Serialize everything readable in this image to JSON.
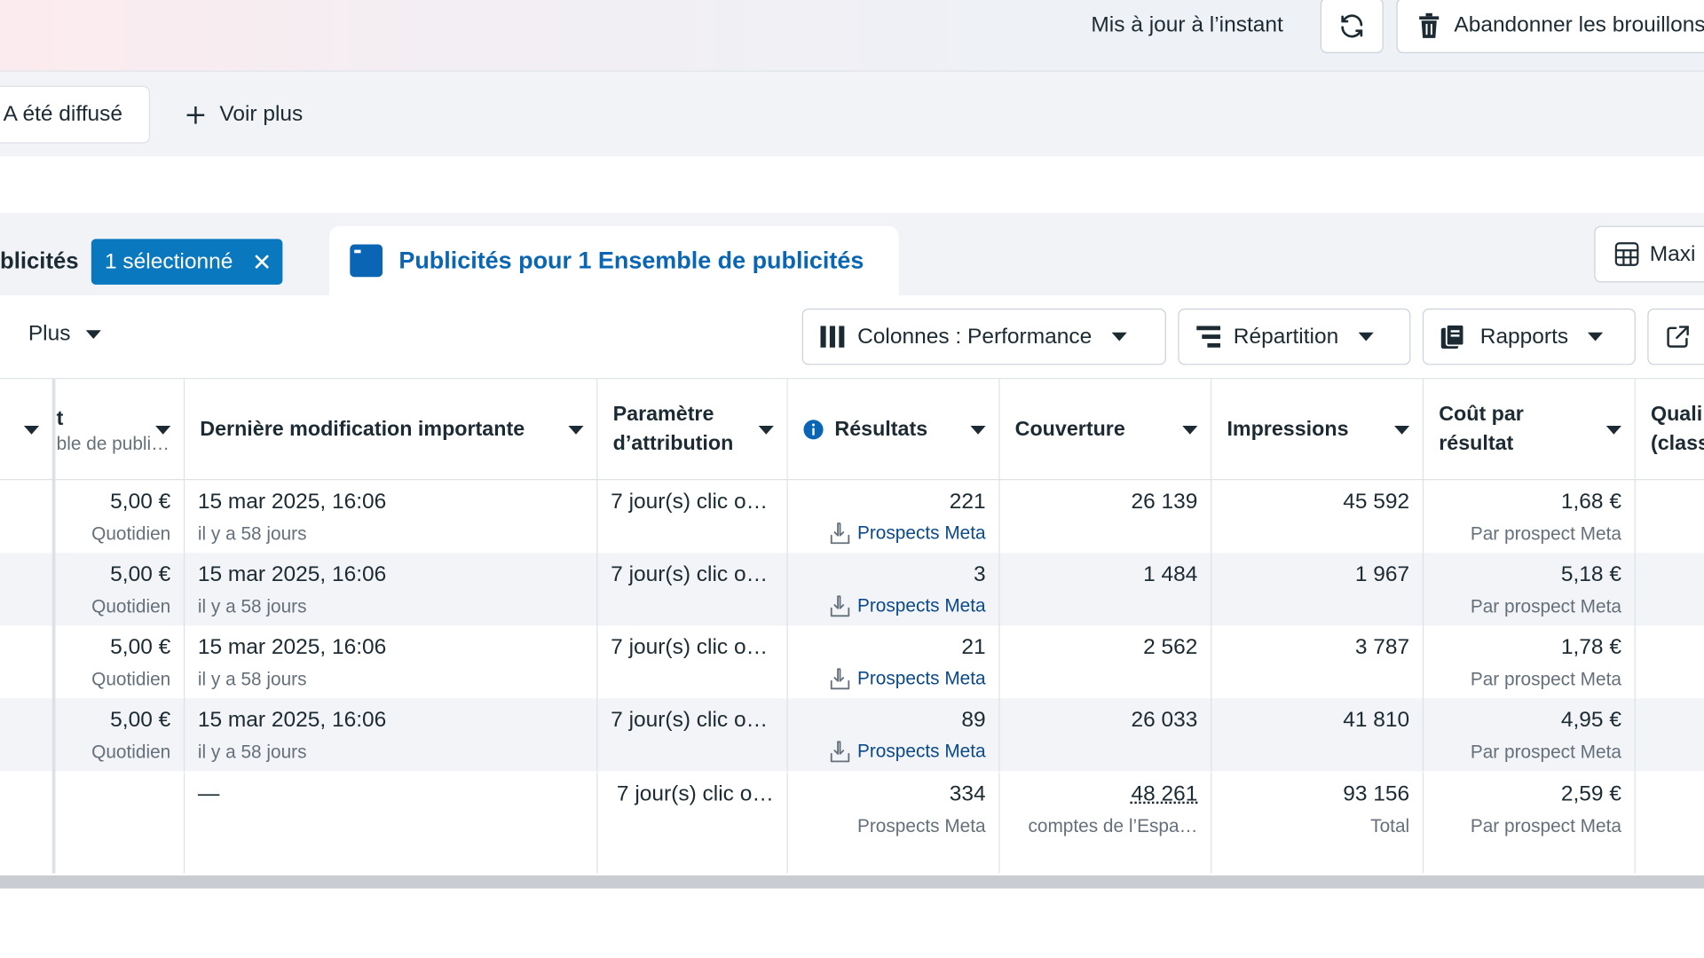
{
  "topbar": {
    "updated": "Mis à jour à l’instant",
    "discard": "Abandonner les brouillons"
  },
  "filters": {
    "chip_diffuse": "A été diffusé",
    "voir_plus": "Voir plus"
  },
  "tabs": {
    "prev_label": "blicités",
    "selected_badge": "1 sélectionné",
    "active_label": "Publicités pour 1 Ensemble de publicités",
    "maxi": "Maxi"
  },
  "toolbar": {
    "plus": "Plus",
    "colonnes": "Colonnes : Performance",
    "repartition": "Répartition",
    "rapports": "Rapports"
  },
  "table": {
    "headers": {
      "budget_line1": "t",
      "budget_line2": "ble de publi…",
      "derniere_modif": "Dernière modification importante",
      "parametre": "Paramètre d’attribution",
      "resultats": "Résultats",
      "couverture": "Couverture",
      "impressions": "Impressions",
      "cout": "Coût par résultat",
      "qualite": "Quali (class"
    },
    "rows": [
      {
        "budget": "5,00 €",
        "budget_sub": "Quotidien",
        "date": "15 mar 2025, 16:06",
        "date_sub": "il y a 58 jours",
        "attribution": "7 jour(s) clic o…",
        "results": "221",
        "results_sub": "Prospects Meta",
        "reach": "26 139",
        "impressions": "45 592",
        "cost": "1,68 €",
        "cost_sub": "Par prospect Meta"
      },
      {
        "budget": "5,00 €",
        "budget_sub": "Quotidien",
        "date": "15 mar 2025, 16:06",
        "date_sub": "il y a 58 jours",
        "attribution": "7 jour(s) clic o…",
        "results": "3",
        "results_sub": "Prospects Meta",
        "reach": "1 484",
        "impressions": "1 967",
        "cost": "5,18 €",
        "cost_sub": "Par prospect Meta"
      },
      {
        "budget": "5,00 €",
        "budget_sub": "Quotidien",
        "date": "15 mar 2025, 16:06",
        "date_sub": "il y a 58 jours",
        "attribution": "7 jour(s) clic o…",
        "results": "21",
        "results_sub": "Prospects Meta",
        "reach": "2 562",
        "impressions": "3 787",
        "cost": "1,78 €",
        "cost_sub": "Par prospect Meta"
      },
      {
        "budget": "5,00 €",
        "budget_sub": "Quotidien",
        "date": "15 mar 2025, 16:06",
        "date_sub": "il y a 58 jours",
        "attribution": "7 jour(s) clic o…",
        "results": "89",
        "results_sub": "Prospects Meta",
        "reach": "26 033",
        "impressions": "41 810",
        "cost": "4,95 €",
        "cost_sub": "Par prospect Meta"
      }
    ],
    "totals": {
      "date": "—",
      "attribution": "7 jour(s) clic o…",
      "results": "334",
      "results_sub": "Prospects Meta",
      "reach": "48 261",
      "reach_sub": "comptes de l’Espa…",
      "impressions": "93 156",
      "impressions_sub": "Total",
      "cost": "2,59 €",
      "cost_sub": "Par prospect Meta"
    }
  },
  "colors": {
    "accent": "#0a78be",
    "link": "#0a66b4",
    "text": "#1c2b33",
    "muted": "#65707b"
  }
}
